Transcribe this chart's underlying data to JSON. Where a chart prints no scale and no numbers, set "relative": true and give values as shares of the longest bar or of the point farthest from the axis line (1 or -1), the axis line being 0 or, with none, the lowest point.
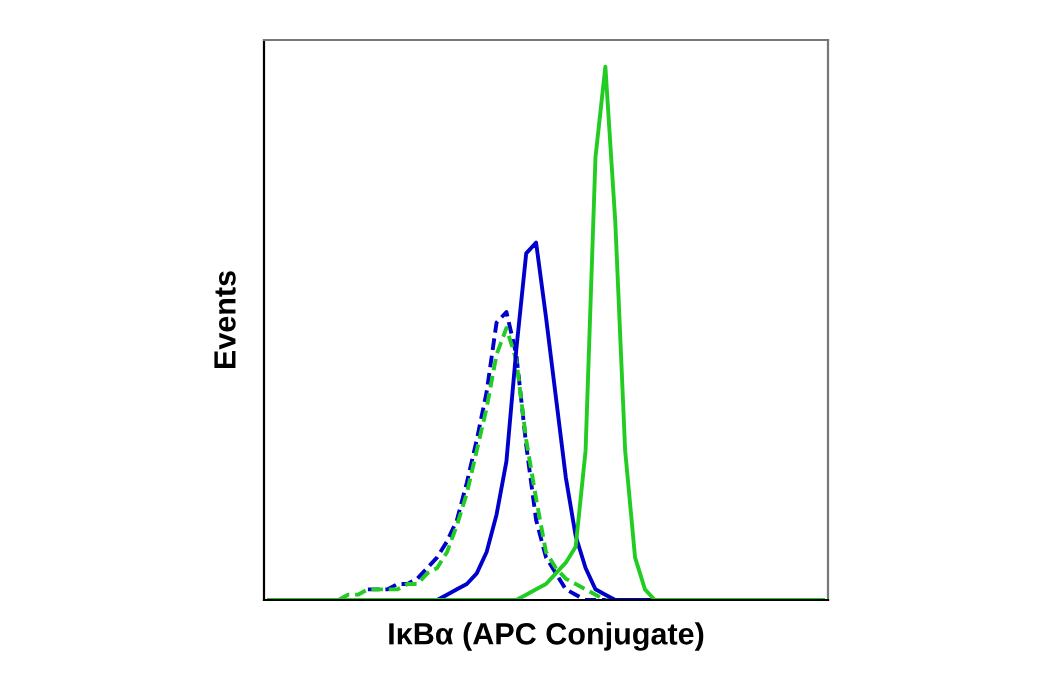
{
  "chart_data": {
    "type": "line",
    "relative": true,
    "xlabel": "IκBα (APC Conjugate)",
    "ylabel": "Events",
    "legend": false,
    "marker": "none",
    "categories": [
      null,
      null,
      null,
      null,
      null,
      null,
      null,
      null,
      null,
      null,
      null,
      null,
      null,
      null,
      null,
      null,
      null,
      null,
      null,
      null,
      null,
      null,
      null,
      null,
      null,
      null,
      null,
      null,
      null,
      null,
      null,
      null,
      null,
      null,
      null,
      null,
      null,
      null,
      null,
      null,
      null,
      null,
      null,
      null,
      null,
      null,
      null,
      null,
      null,
      null,
      null,
      null,
      null,
      null,
      null,
      null,
      null
    ],
    "series": [
      {
        "color": "#0000cc",
        "line_style": "dashed",
        "values": [
          null,
          null,
          null,
          null,
          null,
          null,
          null,
          null,
          null,
          null,
          0.02,
          0.02,
          0.02,
          0.03,
          0.03,
          0.04,
          0.06,
          0.08,
          0.11,
          0.15,
          0.22,
          0.3,
          0.39,
          0.52,
          0.54,
          0.46,
          0.29,
          0.15,
          0.08,
          0.05,
          0.02,
          0.01,
          0,
          0,
          0,
          0,
          0,
          0,
          0,
          0,
          0,
          0,
          null,
          null,
          null,
          null,
          null,
          null,
          null,
          null,
          null,
          null,
          null,
          null,
          null,
          null,
          null
        ]
      },
      {
        "color": "#22cc22",
        "line_style": "dashed",
        "values": [
          0,
          0,
          0,
          0,
          0,
          0,
          0,
          0,
          0.01,
          0.01,
          0.02,
          0.02,
          0.02,
          0.02,
          0.03,
          0.03,
          0.05,
          0.06,
          0.09,
          0.14,
          0.2,
          0.28,
          0.36,
          0.46,
          0.51,
          0.45,
          0.3,
          0.19,
          0.09,
          0.06,
          0.04,
          0.03,
          0.02,
          0.01,
          0,
          0,
          0,
          0,
          0,
          0,
          0,
          0,
          0,
          0,
          0,
          0,
          0,
          0,
          0,
          0,
          0,
          0,
          0,
          0,
          0,
          0,
          0
        ]
      },
      {
        "color": "#0000cc",
        "line_style": "solid",
        "values": [
          null,
          null,
          null,
          null,
          null,
          null,
          null,
          null,
          null,
          null,
          null,
          null,
          null,
          null,
          null,
          null,
          0,
          0,
          0.01,
          0.02,
          0.03,
          0.05,
          0.09,
          0.16,
          0.26,
          0.47,
          0.65,
          0.67,
          0.53,
          0.38,
          0.23,
          0.12,
          0.06,
          0.02,
          0.01,
          0,
          0,
          0,
          0,
          0,
          null,
          null,
          null,
          null,
          null,
          null,
          null,
          null,
          null,
          null,
          null,
          null,
          null,
          null,
          null,
          null,
          null
        ]
      },
      {
        "color": "#22cc22",
        "line_style": "solid",
        "values": [
          0,
          0,
          0,
          0,
          0,
          0,
          0,
          0,
          0,
          0,
          0,
          0,
          0,
          0,
          0,
          0,
          0,
          0,
          0,
          0,
          0,
          0,
          0,
          0,
          0,
          0,
          0.01,
          0.02,
          0.03,
          0.05,
          0.07,
          0.1,
          0.28,
          0.83,
          1,
          0.71,
          0.28,
          0.08,
          0.02,
          0,
          0,
          0,
          0,
          0,
          0,
          0,
          0,
          0,
          0,
          0,
          0,
          0,
          0,
          0,
          0,
          0,
          0
        ]
      }
    ]
  }
}
